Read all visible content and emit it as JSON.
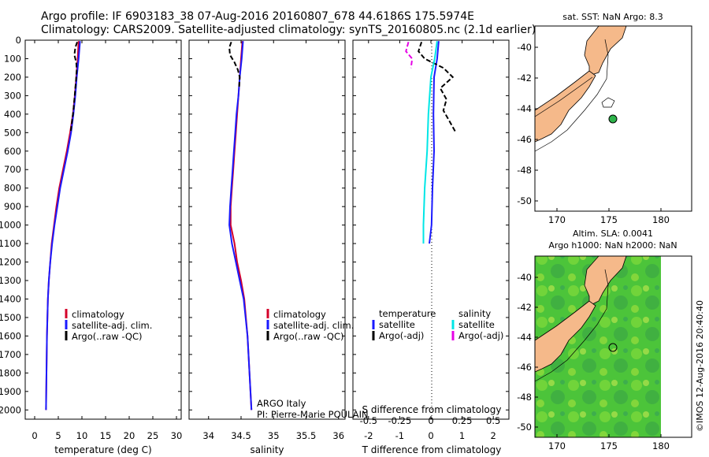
{
  "header": {
    "line1": "Argo profile: IF 6903183_38 07-Aug-2016 20160807_678 44.6186S 175.5974E",
    "line2": "Climatology: CARS2009. Satellite-adjusted climatology: synTS_20160805.nc (2.1d earlier)"
  },
  "colors": {
    "climatology": "#d4002a",
    "satellite": "#1a1aff",
    "argo": "#000000",
    "sal_satellite": "#00e6e6",
    "sal_argo": "#e600e6",
    "land": "#f5b98a",
    "float_marker": "#2db34a"
  },
  "depth_axis": {
    "ticks": [
      "0",
      "100",
      "200",
      "300",
      "400",
      "500",
      "600",
      "700",
      "800",
      "900",
      "1000",
      "1100",
      "1200",
      "1300",
      "1400",
      "1500",
      "1600",
      "1700",
      "1800",
      "1900",
      "2000"
    ],
    "range": [
      0,
      2050
    ]
  },
  "chart_data": [
    {
      "type": "line",
      "id": "temperature",
      "xlabel": "temperature (deg C)",
      "xlim": [
        -2,
        31
      ],
      "xticks": [
        "0",
        "5",
        "10",
        "15",
        "20",
        "25",
        "30"
      ],
      "ylim": [
        0,
        2050
      ],
      "legend": [
        "climatology",
        "satellite-adj. clim.",
        "Argo(..raw -QC)"
      ],
      "series": [
        {
          "name": "climatology",
          "depth": [
            5,
            100,
            200,
            300,
            400,
            500,
            600,
            700,
            800,
            900,
            1000,
            1100,
            1200,
            1300,
            1400,
            1600,
            1800,
            2000
          ],
          "values": [
            9.3,
            9.1,
            8.8,
            8.5,
            8.1,
            7.5,
            6.8,
            6.0,
            5.2,
            4.6,
            4.1,
            3.6,
            3.3,
            3.0,
            2.8,
            2.6,
            2.5,
            2.4
          ]
        },
        {
          "name": "satellite-adj. clim.",
          "depth": [
            5,
            100,
            200,
            300,
            400,
            500,
            600,
            700,
            800,
            900,
            1000,
            1100,
            1200,
            1300,
            1400,
            1600,
            1800,
            2000
          ],
          "values": [
            9.6,
            9.3,
            8.9,
            8.6,
            8.2,
            7.7,
            7.0,
            6.2,
            5.4,
            4.8,
            4.2,
            3.7,
            3.3,
            3.0,
            2.8,
            2.6,
            2.5,
            2.4
          ]
        },
        {
          "name": "Argo(..raw -QC)",
          "depth": [
            10,
            40,
            80,
            120,
            160,
            200,
            260,
            320,
            380,
            440,
            500
          ],
          "values": [
            9.0,
            8.6,
            8.4,
            8.8,
            8.9,
            8.8,
            8.6,
            8.4,
            8.2,
            7.9,
            7.6
          ]
        }
      ]
    },
    {
      "type": "line",
      "id": "salinity",
      "xlabel": "salinity",
      "xlim": [
        33.7,
        36.1
      ],
      "xticks": [
        "34",
        "34.5",
        "35",
        "35.5",
        "36"
      ],
      "ylim": [
        0,
        2050
      ],
      "legend": [
        "climatology",
        "satellite-adj. clim.",
        "Argo(..raw -QC)"
      ],
      "series": [
        {
          "name": "climatology",
          "depth": [
            5,
            100,
            200,
            300,
            400,
            500,
            600,
            700,
            800,
            900,
            1000,
            1100,
            1200,
            1300,
            1400,
            1600,
            1800,
            2000
          ],
          "values": [
            34.52,
            34.5,
            34.48,
            34.46,
            34.44,
            34.42,
            34.4,
            34.38,
            34.36,
            34.34,
            34.34,
            34.4,
            34.44,
            34.5,
            34.55,
            34.6,
            34.63,
            34.66
          ]
        },
        {
          "name": "satellite-adj. clim.",
          "depth": [
            5,
            100,
            200,
            300,
            400,
            500,
            600,
            700,
            800,
            900,
            1000,
            1100,
            1200,
            1300,
            1400,
            1600,
            1800,
            2000
          ],
          "values": [
            34.53,
            34.51,
            34.48,
            34.46,
            34.43,
            34.41,
            34.39,
            34.37,
            34.35,
            34.33,
            34.32,
            34.36,
            34.42,
            34.48,
            34.54,
            34.6,
            34.63,
            34.66
          ]
        },
        {
          "name": "Argo(..raw -QC)",
          "depth": [
            10,
            40,
            80,
            120,
            160,
            200,
            260
          ],
          "values": [
            34.35,
            34.32,
            34.33,
            34.4,
            34.45,
            34.48,
            34.47
          ]
        }
      ]
    },
    {
      "type": "line",
      "id": "difference",
      "xlabel": "T difference from climatology",
      "xlabel_top": "S difference from climatology",
      "xlim": [
        -2.5,
        2.5
      ],
      "xticks": [
        "-2",
        "-1",
        "0",
        "1",
        "2"
      ],
      "s_ticks": [
        "-0.5",
        "-0.25",
        "0",
        "0.25",
        "0.5"
      ],
      "ylim": [
        0,
        2050
      ],
      "legend_headers": [
        "temperature",
        "salinity"
      ],
      "legend": [
        "satellite",
        "Argo(-adj)",
        "satellite",
        "Argo(-adj)"
      ],
      "series": [
        {
          "name": "T satellite",
          "depth": [
            5,
            100,
            200,
            400,
            600,
            800,
            1000,
            1100
          ],
          "values": [
            0.25,
            0.2,
            0.1,
            0.08,
            0.1,
            0.05,
            0.02,
            -0.05
          ]
        },
        {
          "name": "T Argo(-adj)",
          "depth": [
            10,
            60,
            100,
            150,
            200,
            260,
            320,
            380,
            440,
            500
          ],
          "values": [
            -0.3,
            -0.4,
            -0.2,
            0.4,
            0.7,
            0.3,
            0.5,
            0.4,
            0.6,
            0.8
          ]
        },
        {
          "name": "S satellite",
          "depth": [
            5,
            100,
            200,
            400,
            600,
            800,
            1000,
            1100
          ],
          "values": [
            0.05,
            0.03,
            0.0,
            -0.02,
            -0.03,
            -0.05,
            -0.06,
            -0.06
          ]
        },
        {
          "name": "S Argo(-adj)",
          "depth": [
            10,
            60,
            100,
            150
          ],
          "values": [
            -0.18,
            -0.2,
            -0.15,
            -0.16
          ]
        }
      ]
    }
  ],
  "credits": {
    "line1": "ARGO Italy",
    "line2": "PI: Pierre-Marie POULAIN"
  },
  "map_sst": {
    "title": "sat. SST: NaN Argo: 8.3",
    "lat_ticks": [
      "-40",
      "-42",
      "-44",
      "-46",
      "-48",
      "-50"
    ],
    "lon_ticks": [
      "170",
      "175",
      "180"
    ]
  },
  "map_sla": {
    "title_line1": "Altim. SLA: 0.0041",
    "title_line2": "Argo h1000: NaN h2000: NaN",
    "lat_ticks": [
      "-40",
      "-42",
      "-44",
      "-46",
      "-48",
      "-50"
    ],
    "lon_ticks": [
      "170",
      "175",
      "180"
    ]
  },
  "stamp": "©IMOS 12-Aug-2016 20:40:40"
}
